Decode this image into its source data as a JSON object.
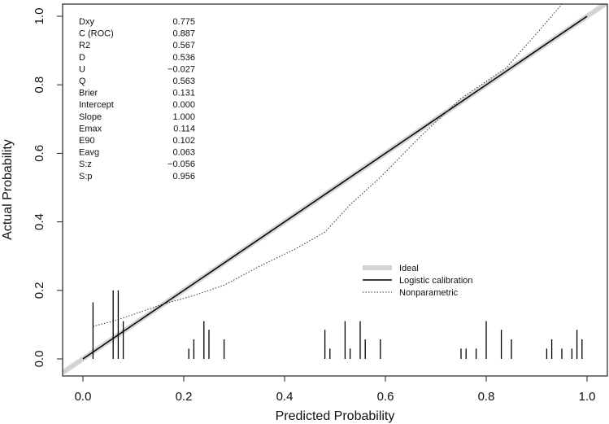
{
  "chart_data": {
    "type": "line",
    "title": "",
    "xlabel": "Predicted Probability",
    "ylabel": "Actual Probability",
    "xlim": [
      -0.04,
      1.04
    ],
    "ylim": [
      -0.05,
      1.03
    ],
    "xticks": [
      "0.0",
      "0.2",
      "0.4",
      "0.6",
      "0.8",
      "1.0"
    ],
    "yticks": [
      "0.0",
      "0.2",
      "0.4",
      "0.6",
      "0.8",
      "1.0"
    ],
    "legend": {
      "placement": "bottom-right",
      "entries": [
        "Ideal",
        "Logistic calibration",
        "Nonparametric"
      ]
    },
    "series": [
      {
        "name": "Ideal",
        "color": "#d3d3d3",
        "x": [
          -0.04,
          1.04
        ],
        "y": [
          -0.04,
          1.04
        ]
      },
      {
        "name": "Logistic calibration",
        "color": "#000000",
        "x": [
          0,
          1
        ],
        "y": [
          0,
          1
        ]
      },
      {
        "name": "Nonparametric",
        "color": "#333333",
        "x": [
          0.02,
          0.06,
          0.1,
          0.16,
          0.22,
          0.28,
          0.35,
          0.42,
          0.48,
          0.53,
          0.59,
          0.67,
          0.75,
          0.84,
          0.9,
          0.95,
          0.97
        ],
        "y": [
          0.095,
          0.11,
          0.13,
          0.16,
          0.185,
          0.215,
          0.27,
          0.32,
          0.37,
          0.45,
          0.53,
          0.65,
          0.76,
          0.85,
          0.95,
          1.035,
          1.07
        ]
      }
    ],
    "rug": {
      "x": [
        0.02,
        0.06,
        0.07,
        0.08,
        0.21,
        0.22,
        0.24,
        0.25,
        0.28,
        0.48,
        0.49,
        0.52,
        0.53,
        0.55,
        0.56,
        0.59,
        0.75,
        0.76,
        0.78,
        0.8,
        0.83,
        0.85,
        0.92,
        0.93,
        0.95,
        0.97,
        0.98,
        0.99
      ],
      "h": [
        0.165,
        0.2,
        0.2,
        0.11,
        0.03,
        0.057,
        0.11,
        0.085,
        0.057,
        0.085,
        0.03,
        0.11,
        0.03,
        0.11,
        0.057,
        0.057,
        0.03,
        0.03,
        0.03,
        0.11,
        0.085,
        0.057,
        0.03,
        0.057,
        0.03,
        0.03,
        0.085,
        0.057
      ]
    },
    "stats": [
      {
        "label": "Dxy",
        "value": "0.775"
      },
      {
        "label": "C (ROC)",
        "value": "0.887"
      },
      {
        "label": "R2",
        "value": "0.567"
      },
      {
        "label": "D",
        "value": "0.536"
      },
      {
        "label": "U",
        "value": "−0.027"
      },
      {
        "label": "Q",
        "value": "0.563"
      },
      {
        "label": "Brier",
        "value": "0.131"
      },
      {
        "label": "Intercept",
        "value": "0.000"
      },
      {
        "label": "Slope",
        "value": "1.000"
      },
      {
        "label": "Emax",
        "value": "0.114"
      },
      {
        "label": "E90",
        "value": "0.102"
      },
      {
        "label": "Eavg",
        "value": "0.063"
      },
      {
        "label": "S:z",
        "value": "−0.056"
      },
      {
        "label": "S:p",
        "value": "0.956"
      }
    ]
  }
}
